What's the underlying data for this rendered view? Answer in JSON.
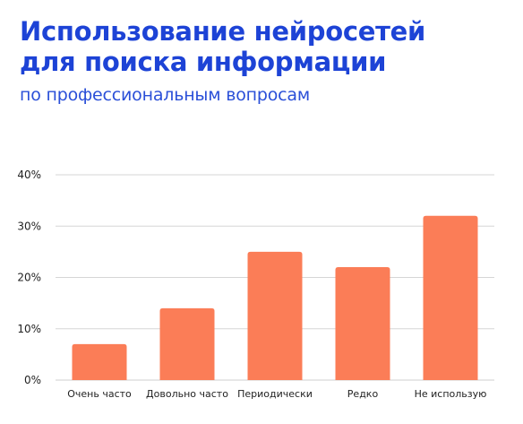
{
  "header": {
    "title_line1": "Использование нейросетей",
    "title_line2": "для поиска информации",
    "subtitle": "по профессиональным вопросам"
  },
  "colors": {
    "title": "#1d43d6",
    "bar": "#fb7d57",
    "grid": "#d6d6d6",
    "axis": "#cfcfcf"
  },
  "chart_data": {
    "type": "bar",
    "categories": [
      "Очень часто",
      "Довольно часто",
      "Периодически",
      "Редко",
      "Не использую"
    ],
    "values": [
      7,
      14,
      25,
      22,
      32
    ],
    "ylim": [
      0,
      40
    ],
    "yticks": [
      0,
      10,
      20,
      30,
      40
    ],
    "ytick_labels": [
      "0%",
      "10%",
      "20%",
      "30%",
      "40%"
    ],
    "grid": true,
    "xlabel": "",
    "ylabel": ""
  }
}
